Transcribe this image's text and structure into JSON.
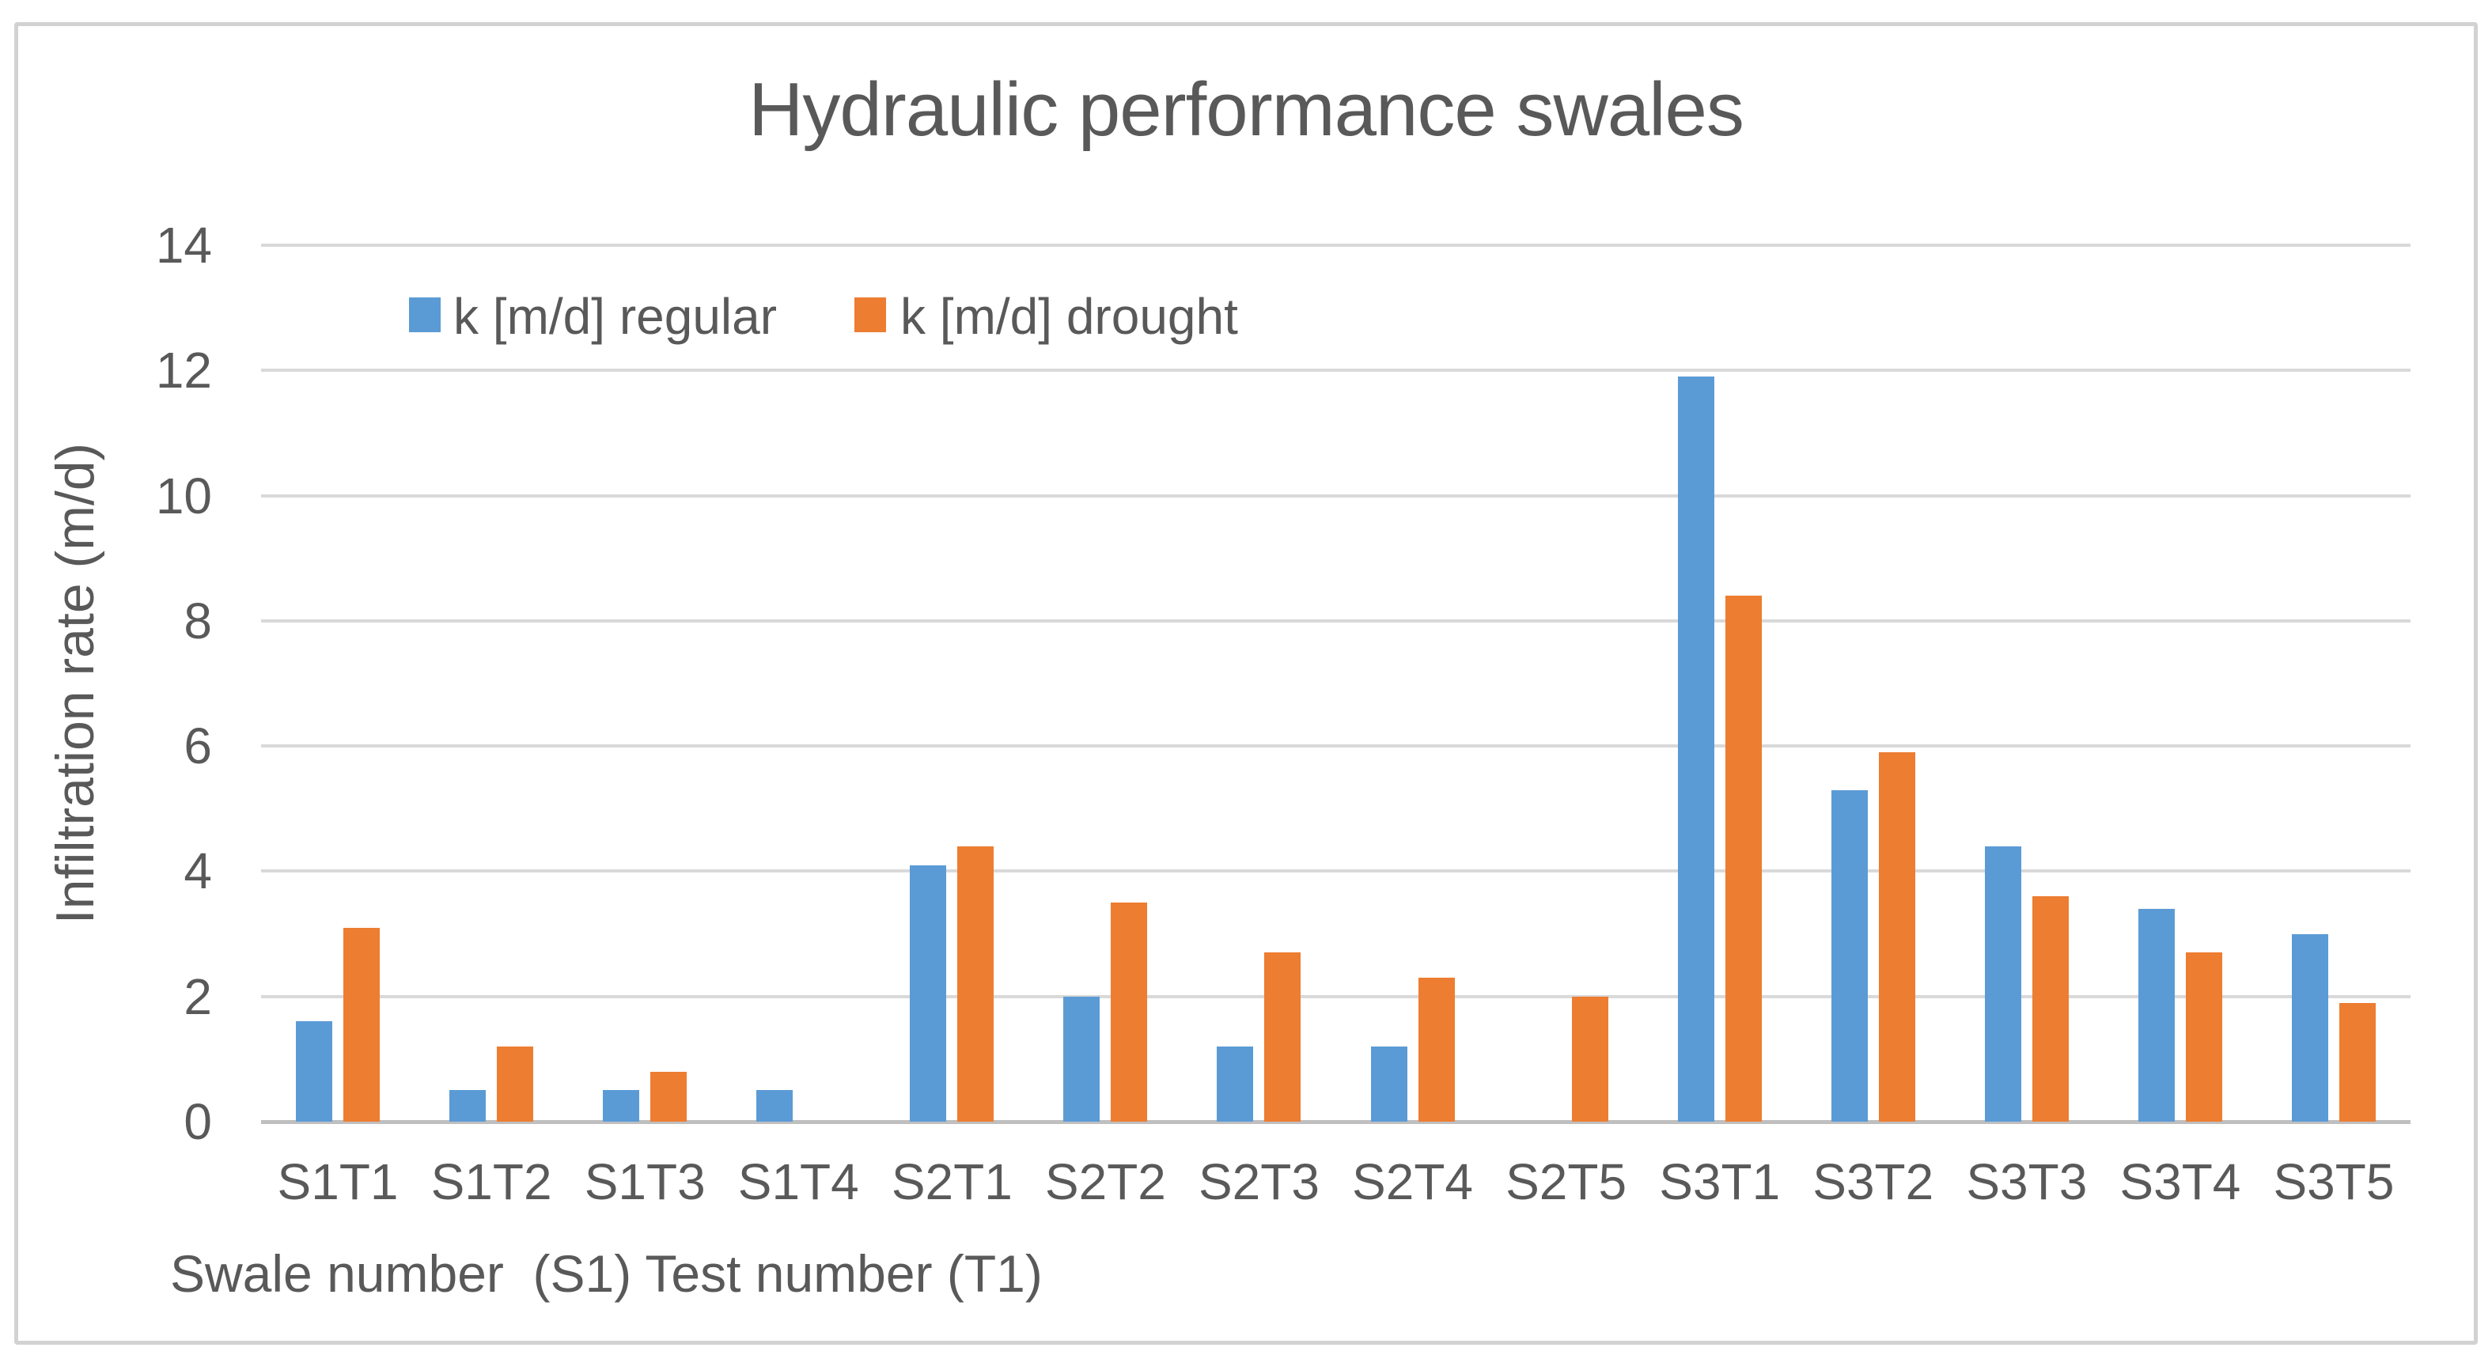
{
  "title": "Hydraulic performance swales",
  "caption": "Swale number  (S1) Test number (T1)",
  "colors": {
    "regular": "#5B9BD5",
    "drought": "#ED7D31",
    "text": "#595959",
    "grid": "#D9D9D9",
    "baseline": "#BFBFBF",
    "frame": "#D2D2D2"
  },
  "chart_data": {
    "type": "bar",
    "title": "Hydraulic performance swales",
    "xlabel": "Swale number  (S1) Test number (T1)",
    "ylabel": "Infiltration rate (m/d)",
    "ylim": [
      0,
      14
    ],
    "yticks": [
      0,
      2,
      4,
      6,
      8,
      10,
      12,
      14
    ],
    "grid": true,
    "legend_position": "top-left-inside",
    "categories": [
      "S1T1",
      "S1T2",
      "S1T3",
      "S1T4",
      "S2T1",
      "S2T2",
      "S2T3",
      "S2T4",
      "S2T5",
      "S3T1",
      "S3T2",
      "S3T3",
      "S3T4",
      "S3T5"
    ],
    "series": [
      {
        "name": "k [m/d] regular",
        "key": "regular",
        "color": "#5B9BD5",
        "values": [
          1.6,
          0.5,
          0.5,
          0.5,
          4.1,
          2.0,
          1.2,
          1.2,
          null,
          11.9,
          5.3,
          4.4,
          3.4,
          3.0
        ]
      },
      {
        "name": "k [m/d] drought",
        "key": "drought",
        "color": "#ED7D31",
        "values": [
          3.1,
          1.2,
          0.8,
          null,
          4.4,
          3.5,
          2.7,
          2.3,
          2.0,
          8.4,
          5.9,
          3.6,
          2.7,
          1.9
        ]
      }
    ]
  }
}
